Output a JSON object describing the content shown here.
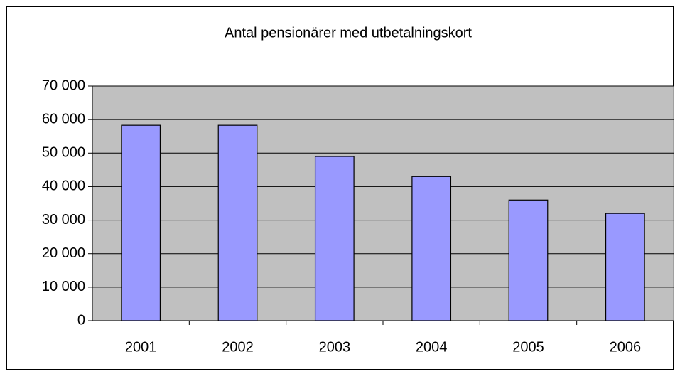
{
  "chart_data": {
    "type": "bar",
    "title": "Antal pensionärer med utbetalningskort",
    "categories": [
      "2001",
      "2002",
      "2003",
      "2004",
      "2005",
      "2006"
    ],
    "values": [
      58300,
      58300,
      49000,
      43000,
      36000,
      32000
    ],
    "color": "#9999ff",
    "ylim": [
      0,
      70000
    ],
    "yticks": [
      0,
      {
        "value": 10000,
        "label": "10 000"
      },
      {
        "value": 20000,
        "label": "20 000"
      },
      {
        "value": 30000,
        "label": "30 000"
      },
      {
        "value": 40000,
        "label": "40 000"
      },
      {
        "value": 50000,
        "label": "50 000"
      },
      {
        "value": 60000,
        "label": "60 000"
      },
      {
        "value": 70000,
        "label": "70 000"
      }
    ],
    "grid": true
  }
}
